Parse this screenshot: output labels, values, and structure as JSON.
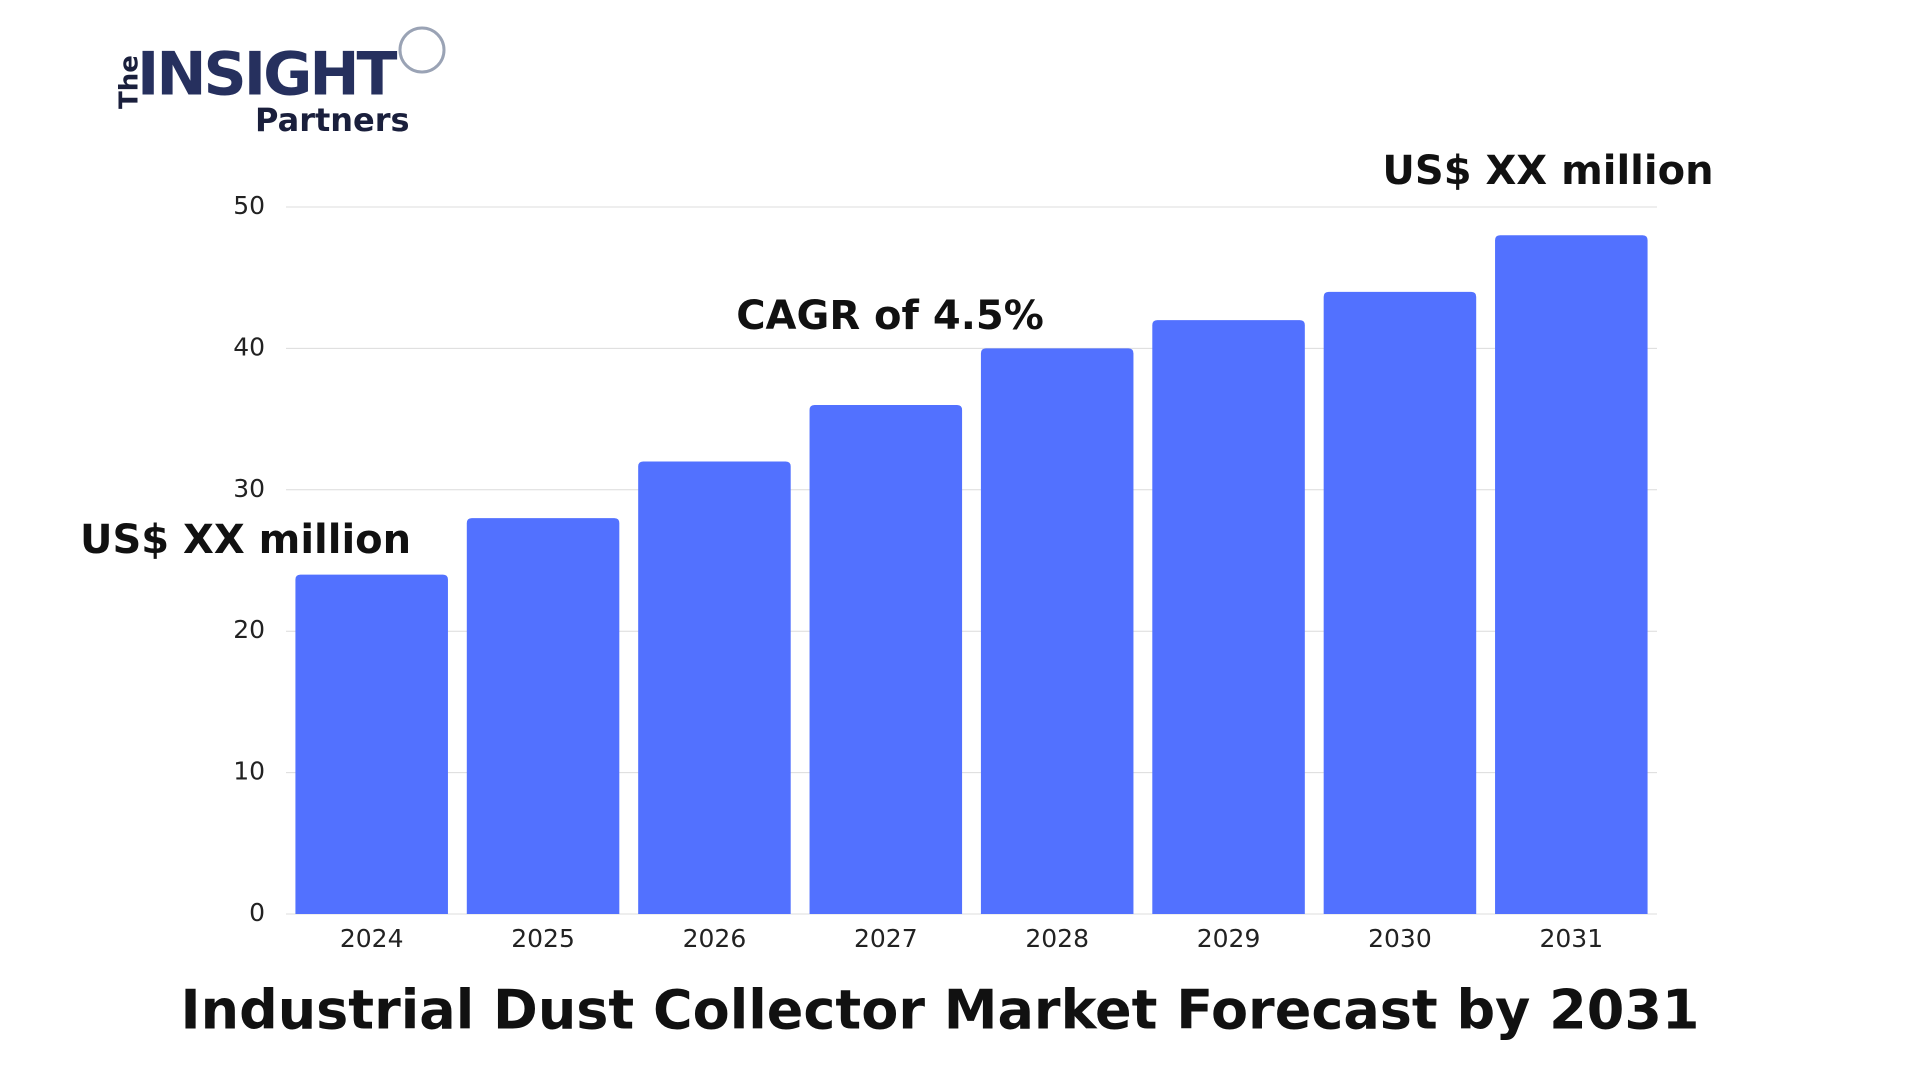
{
  "logo": {
    "the": "The",
    "insight": "INSIGHT",
    "partners": "Partners"
  },
  "chart_data": {
    "type": "bar",
    "title": "Industrial Dust Collector Market Forecast by 2031",
    "categories": [
      "2024",
      "2025",
      "2026",
      "2027",
      "2028",
      "2029",
      "2030",
      "2031"
    ],
    "values": [
      24,
      28,
      32,
      36,
      40,
      42,
      44,
      48
    ],
    "color": "#5271ff",
    "ylim": [
      0,
      50
    ],
    "yticks": [
      0,
      10,
      20,
      30,
      40,
      50
    ],
    "grid": true,
    "annotations": [
      "US$ XX million",
      "CAGR of 4.5%",
      "US$ XX million"
    ]
  }
}
